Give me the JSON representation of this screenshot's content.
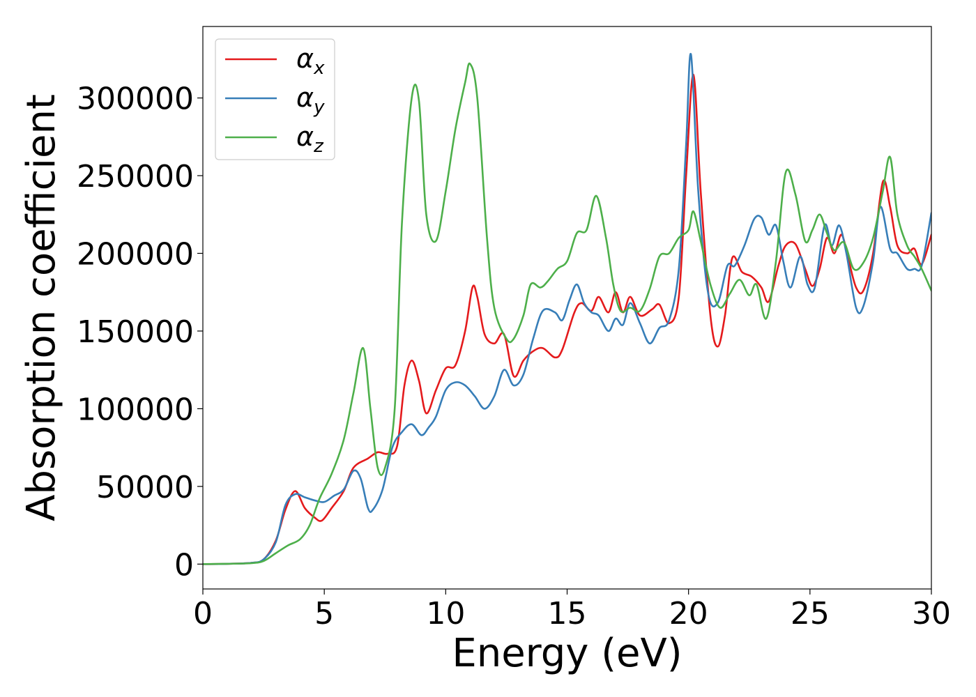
{
  "chart_data": {
    "type": "line",
    "title": "",
    "xlabel": "Energy (eV)",
    "ylabel": "Absorption coefficient",
    "xlim": [
      0,
      30
    ],
    "ylim": [
      -16000,
      346000
    ],
    "xticks": [
      0,
      5,
      10,
      15,
      20,
      25,
      30
    ],
    "yticks": [
      0,
      50000,
      100000,
      150000,
      200000,
      250000,
      300000
    ],
    "grid": false,
    "legend_position": "top-left",
    "series": [
      {
        "name": "α",
        "name_sub": "x",
        "color": "#e41a1c",
        "points": [
          [
            0,
            0
          ],
          [
            1,
            200
          ],
          [
            2,
            800
          ],
          [
            2.5,
            3000
          ],
          [
            3,
            15000
          ],
          [
            3.4,
            35000
          ],
          [
            3.8,
            47000
          ],
          [
            4.2,
            36000
          ],
          [
            4.6,
            30000
          ],
          [
            4.9,
            28000
          ],
          [
            5.3,
            36000
          ],
          [
            5.8,
            47000
          ],
          [
            6.2,
            62000
          ],
          [
            6.8,
            68000
          ],
          [
            7.2,
            72000
          ],
          [
            7.6,
            71000
          ],
          [
            8.0,
            76000
          ],
          [
            8.3,
            115000
          ],
          [
            8.6,
            131000
          ],
          [
            8.9,
            118000
          ],
          [
            9.2,
            97000
          ],
          [
            9.6,
            112000
          ],
          [
            10.0,
            126000
          ],
          [
            10.4,
            128000
          ],
          [
            10.8,
            150000
          ],
          [
            11.1,
            178000
          ],
          [
            11.3,
            172000
          ],
          [
            11.6,
            148000
          ],
          [
            12.0,
            142000
          ],
          [
            12.4,
            148000
          ],
          [
            12.8,
            121000
          ],
          [
            13.2,
            131000
          ],
          [
            13.6,
            137000
          ],
          [
            14.0,
            139000
          ],
          [
            14.5,
            133000
          ],
          [
            14.8,
            138000
          ],
          [
            15.3,
            162000
          ],
          [
            15.6,
            168000
          ],
          [
            16.0,
            163000
          ],
          [
            16.3,
            172000
          ],
          [
            16.7,
            162000
          ],
          [
            17.0,
            175000
          ],
          [
            17.3,
            162000
          ],
          [
            17.6,
            172000
          ],
          [
            18.0,
            160000
          ],
          [
            18.5,
            164000
          ],
          [
            18.8,
            167000
          ],
          [
            19.2,
            155000
          ],
          [
            19.6,
            172000
          ],
          [
            19.9,
            250000
          ],
          [
            20.2,
            315000
          ],
          [
            20.5,
            240000
          ],
          [
            20.9,
            160000
          ],
          [
            21.2,
            140000
          ],
          [
            21.5,
            160000
          ],
          [
            21.8,
            197000
          ],
          [
            22.2,
            188000
          ],
          [
            22.6,
            185000
          ],
          [
            23.0,
            178000
          ],
          [
            23.3,
            169000
          ],
          [
            23.7,
            192000
          ],
          [
            24.0,
            205000
          ],
          [
            24.4,
            206000
          ],
          [
            24.8,
            190000
          ],
          [
            25.1,
            179000
          ],
          [
            25.4,
            190000
          ],
          [
            25.7,
            210000
          ],
          [
            26.0,
            200000
          ],
          [
            26.3,
            212000
          ],
          [
            26.6,
            195000
          ],
          [
            26.9,
            178000
          ],
          [
            27.2,
            176000
          ],
          [
            27.6,
            200000
          ],
          [
            28.0,
            246000
          ],
          [
            28.3,
            230000
          ],
          [
            28.6,
            205000
          ],
          [
            29.0,
            200000
          ],
          [
            29.3,
            203000
          ],
          [
            29.6,
            193000
          ],
          [
            30.0,
            212000
          ]
        ]
      },
      {
        "name": "α",
        "name_sub": "y",
        "color": "#377eb8",
        "points": [
          [
            0,
            0
          ],
          [
            1,
            200
          ],
          [
            2,
            800
          ],
          [
            2.5,
            3000
          ],
          [
            3,
            14000
          ],
          [
            3.4,
            38000
          ],
          [
            3.8,
            45000
          ],
          [
            4.2,
            43000
          ],
          [
            4.6,
            41000
          ],
          [
            5.0,
            40000
          ],
          [
            5.4,
            44000
          ],
          [
            5.8,
            48000
          ],
          [
            6.2,
            60000
          ],
          [
            6.5,
            55000
          ],
          [
            6.8,
            36000
          ],
          [
            7.0,
            35000
          ],
          [
            7.4,
            48000
          ],
          [
            7.8,
            75000
          ],
          [
            8.2,
            85000
          ],
          [
            8.6,
            90000
          ],
          [
            9.0,
            83000
          ],
          [
            9.3,
            88000
          ],
          [
            9.6,
            95000
          ],
          [
            10.0,
            112000
          ],
          [
            10.4,
            117000
          ],
          [
            10.8,
            115000
          ],
          [
            11.2,
            108000
          ],
          [
            11.6,
            100000
          ],
          [
            12.0,
            108000
          ],
          [
            12.4,
            125000
          ],
          [
            12.8,
            115000
          ],
          [
            13.2,
            122000
          ],
          [
            13.6,
            145000
          ],
          [
            14.0,
            163000
          ],
          [
            14.5,
            162000
          ],
          [
            14.8,
            157000
          ],
          [
            15.1,
            170000
          ],
          [
            15.4,
            180000
          ],
          [
            15.7,
            168000
          ],
          [
            16.0,
            162000
          ],
          [
            16.3,
            160000
          ],
          [
            16.7,
            150000
          ],
          [
            17.0,
            158000
          ],
          [
            17.3,
            154000
          ],
          [
            17.6,
            168000
          ],
          [
            18.0,
            155000
          ],
          [
            18.4,
            142000
          ],
          [
            18.8,
            152000
          ],
          [
            19.2,
            157000
          ],
          [
            19.6,
            190000
          ],
          [
            19.9,
            270000
          ],
          [
            20.1,
            328000
          ],
          [
            20.4,
            240000
          ],
          [
            20.8,
            175000
          ],
          [
            21.2,
            168000
          ],
          [
            21.6,
            192000
          ],
          [
            21.9,
            192000
          ],
          [
            22.3,
            205000
          ],
          [
            22.7,
            222000
          ],
          [
            23.0,
            223000
          ],
          [
            23.3,
            212000
          ],
          [
            23.6,
            218000
          ],
          [
            23.9,
            195000
          ],
          [
            24.2,
            178000
          ],
          [
            24.6,
            198000
          ],
          [
            24.9,
            180000
          ],
          [
            25.2,
            178000
          ],
          [
            25.6,
            218000
          ],
          [
            25.9,
            205000
          ],
          [
            26.2,
            218000
          ],
          [
            26.5,
            200000
          ],
          [
            26.9,
            165000
          ],
          [
            27.2,
            166000
          ],
          [
            27.6,
            195000
          ],
          [
            27.9,
            230000
          ],
          [
            28.3,
            203000
          ],
          [
            28.6,
            200000
          ],
          [
            29.0,
            190000
          ],
          [
            29.3,
            190000
          ],
          [
            29.6,
            192000
          ],
          [
            30.0,
            226000
          ]
        ]
      },
      {
        "name": "α",
        "name_sub": "z",
        "color": "#4daf4a",
        "points": [
          [
            0,
            0
          ],
          [
            1,
            200
          ],
          [
            2,
            600
          ],
          [
            2.5,
            2000
          ],
          [
            3,
            7000
          ],
          [
            3.5,
            12000
          ],
          [
            4.0,
            16000
          ],
          [
            4.4,
            25000
          ],
          [
            4.8,
            42000
          ],
          [
            5.3,
            58000
          ],
          [
            5.8,
            80000
          ],
          [
            6.2,
            110000
          ],
          [
            6.6,
            139000
          ],
          [
            6.9,
            100000
          ],
          [
            7.2,
            62000
          ],
          [
            7.5,
            62000
          ],
          [
            7.9,
            100000
          ],
          [
            8.2,
            220000
          ],
          [
            8.6,
            300000
          ],
          [
            8.9,
            298000
          ],
          [
            9.2,
            225000
          ],
          [
            9.6,
            208000
          ],
          [
            10.0,
            240000
          ],
          [
            10.4,
            280000
          ],
          [
            10.8,
            310000
          ],
          [
            11.0,
            322000
          ],
          [
            11.3,
            300000
          ],
          [
            11.7,
            210000
          ],
          [
            12.0,
            165000
          ],
          [
            12.5,
            145000
          ],
          [
            12.8,
            145000
          ],
          [
            13.2,
            160000
          ],
          [
            13.5,
            180000
          ],
          [
            13.9,
            178000
          ],
          [
            14.2,
            182000
          ],
          [
            14.6,
            190000
          ],
          [
            15.0,
            195000
          ],
          [
            15.4,
            213000
          ],
          [
            15.8,
            215000
          ],
          [
            16.2,
            237000
          ],
          [
            16.6,
            210000
          ],
          [
            16.9,
            180000
          ],
          [
            17.2,
            163000
          ],
          [
            17.6,
            165000
          ],
          [
            18.0,
            163000
          ],
          [
            18.4,
            177000
          ],
          [
            18.8,
            198000
          ],
          [
            19.2,
            200000
          ],
          [
            19.6,
            210000
          ],
          [
            20.0,
            215000
          ],
          [
            20.2,
            227000
          ],
          [
            20.5,
            208000
          ],
          [
            20.9,
            180000
          ],
          [
            21.3,
            165000
          ],
          [
            21.7,
            174000
          ],
          [
            22.1,
            183000
          ],
          [
            22.5,
            173000
          ],
          [
            22.8,
            180000
          ],
          [
            23.2,
            158000
          ],
          [
            23.6,
            195000
          ],
          [
            24.0,
            252000
          ],
          [
            24.4,
            238000
          ],
          [
            24.8,
            208000
          ],
          [
            25.1,
            215000
          ],
          [
            25.4,
            225000
          ],
          [
            25.7,
            213000
          ],
          [
            26.0,
            202000
          ],
          [
            26.4,
            207000
          ],
          [
            26.8,
            190000
          ],
          [
            27.2,
            194000
          ],
          [
            27.6,
            210000
          ],
          [
            28.0,
            240000
          ],
          [
            28.3,
            262000
          ],
          [
            28.6,
            225000
          ],
          [
            29.0,
            205000
          ],
          [
            29.3,
            198000
          ],
          [
            29.6,
            190000
          ],
          [
            30.0,
            176000
          ]
        ]
      }
    ]
  }
}
